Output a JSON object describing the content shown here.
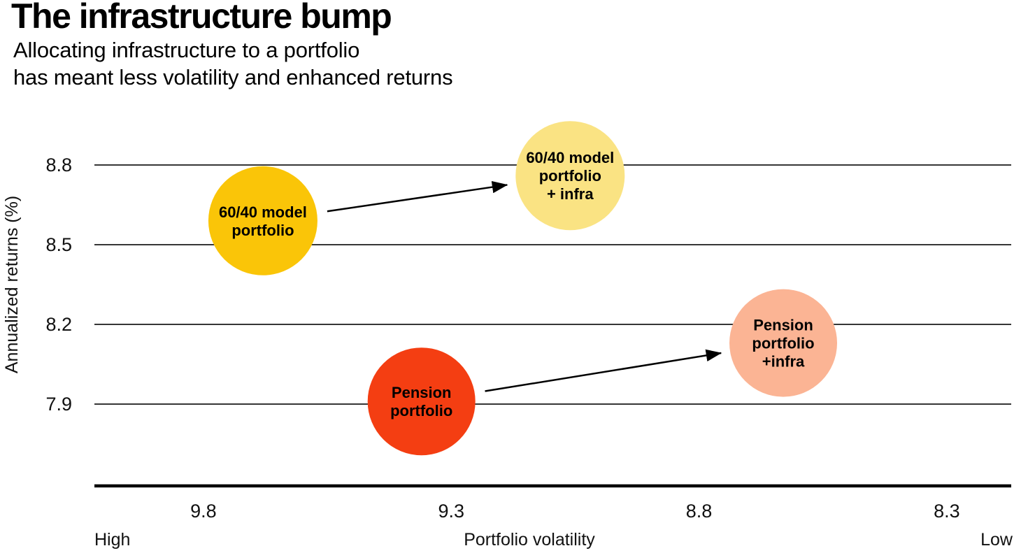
{
  "header": {
    "title": "The infrastructure bump",
    "subtitle_line1": "Allocating infrastructure to a portfolio",
    "subtitle_line2": "has meant less volatility and enhanced returns"
  },
  "chart_data": {
    "type": "scatter",
    "title": "The infrastructure bump",
    "subtitle": "Allocating infrastructure to a portfolio has meant less volatility and enhanced returns",
    "xlabel": "Portfolio volatility",
    "ylabel": "Annualized returns (%)",
    "x_axis": {
      "ticks": [
        9.8,
        9.3,
        8.8,
        8.3
      ],
      "reversed": true,
      "left_value": 10.02,
      "right_value": 8.17,
      "left_end_label": "High",
      "right_end_label": "Low"
    },
    "y_axis": {
      "ticks": [
        8.8,
        8.5,
        8.2,
        7.9
      ]
    },
    "grid": true,
    "legend": false,
    "bubbles": [
      {
        "name": "60/40 model portfolio",
        "label_lines": [
          "60/40 model",
          "portfolio"
        ],
        "volatility": 9.68,
        "annualized_return": 8.59,
        "radius": 78,
        "color": "#FAC508"
      },
      {
        "name": "60/40 model portfolio + infra",
        "label_lines": [
          "60/40 model",
          "portfolio",
          "+ infra"
        ],
        "volatility": 9.06,
        "annualized_return": 8.76,
        "radius": 78,
        "color": "#FAE383"
      },
      {
        "name": "Pension portfolio",
        "label_lines": [
          "Pension",
          "portfolio"
        ],
        "volatility": 9.36,
        "annualized_return": 7.91,
        "radius": 77,
        "color": "#F43E12"
      },
      {
        "name": "Pension portfolio +infra",
        "label_lines": [
          "Pension",
          "portfolio",
          "+infra"
        ],
        "volatility": 8.63,
        "annualized_return": 8.13,
        "radius": 77,
        "color": "#FBB494"
      }
    ],
    "arrows": [
      {
        "from": 0,
        "to": 1
      },
      {
        "from": 2,
        "to": 3
      }
    ],
    "colors": {
      "gold": "#FAC508",
      "pale_yellow": "#FAE383",
      "red_orange": "#F43E12",
      "salmon": "#FBB494",
      "line": "#000000"
    }
  }
}
